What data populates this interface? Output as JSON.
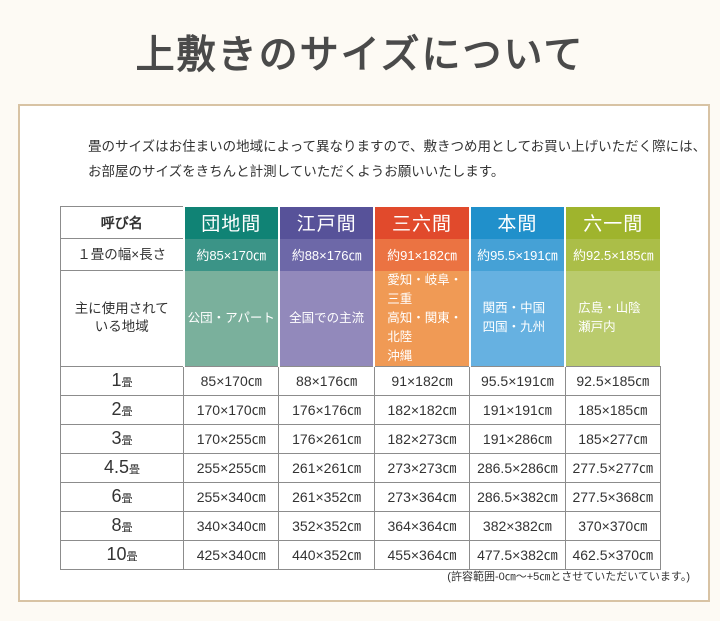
{
  "page": {
    "title": "上敷きのサイズについて",
    "description": "畳のサイズはお住まいの地域によって異なりますので、敷きつめ用としてお買い上げいただく際には、\nお部屋のサイズをきちんと計測していただくようお願いいたします。",
    "footnote": "(許容範囲-0㎝～+5㎝とさせていただいています。)"
  },
  "colors": {
    "page_background": "#fdfaf4",
    "panel_border": "#d8c3a4",
    "grid_line": "#8c8c8c",
    "title_text": "#4a4a4a"
  },
  "table": {
    "corner_label": "呼び名",
    "mat_width_row_label": "１畳の幅×長さ",
    "regions_row_label": "主に使用されて\nいる地域",
    "mat_counts": [
      {
        "num": "1",
        "unit": "畳"
      },
      {
        "num": "2",
        "unit": "畳"
      },
      {
        "num": "3",
        "unit": "畳"
      },
      {
        "num": "4.5",
        "unit": "畳"
      },
      {
        "num": "6",
        "unit": "畳"
      },
      {
        "num": "8",
        "unit": "畳"
      },
      {
        "num": "10",
        "unit": "畳"
      }
    ],
    "columns": [
      {
        "name": "団地間",
        "mat_size": "約85×170㎝",
        "regions": "公団・アパート",
        "sizes": [
          "85×170㎝",
          "170×170㎝",
          "170×255㎝",
          "255×255㎝",
          "255×340㎝",
          "340×340㎝",
          "425×340㎝"
        ],
        "colors": {
          "header": "#108375",
          "mid": "#3b9487",
          "light": "#7ab09c"
        }
      },
      {
        "name": "江戸間",
        "mat_size": "約88×176㎝",
        "regions": "全国での主流",
        "sizes": [
          "88×176㎝",
          "176×176㎝",
          "176×261㎝",
          "261×261㎝",
          "261×352㎝",
          "352×352㎝",
          "440×352㎝"
        ],
        "colors": {
          "header": "#575299",
          "mid": "#6d68a8",
          "light": "#9289bb"
        }
      },
      {
        "name": "三六間",
        "mat_size": "約91×182㎝",
        "regions": "愛知・岐阜・三重\n高知・関東・北陸\n沖縄",
        "sizes": [
          "91×182㎝",
          "182×182㎝",
          "182×273㎝",
          "273×273㎝",
          "273×364㎝",
          "364×364㎝",
          "455×364㎝"
        ],
        "colors": {
          "header": "#e14a2c",
          "mid": "#eb7342",
          "light": "#f09a55"
        }
      },
      {
        "name": "本間",
        "mat_size": "約95.5×191㎝",
        "regions": "関西・中国\n四国・九州",
        "sizes": [
          "95.5×191㎝",
          "191×191㎝",
          "191×286㎝",
          "286.5×286㎝",
          "286.5×382㎝",
          "382×382㎝",
          "477.5×382㎝"
        ],
        "colors": {
          "header": "#2090cb",
          "mid": "#45a1d6",
          "light": "#66b1e1"
        }
      },
      {
        "name": "六一間",
        "mat_size": "約92.5×185㎝",
        "regions": "広島・山陰\n瀬戸内",
        "sizes": [
          "92.5×185㎝",
          "185×185㎝",
          "185×277㎝",
          "277.5×277㎝",
          "277.5×368㎝",
          "370×370㎝",
          "462.5×370㎝"
        ],
        "colors": {
          "header": "#9fb42d",
          "mid": "#abbe48",
          "light": "#bacb6d"
        }
      }
    ]
  }
}
